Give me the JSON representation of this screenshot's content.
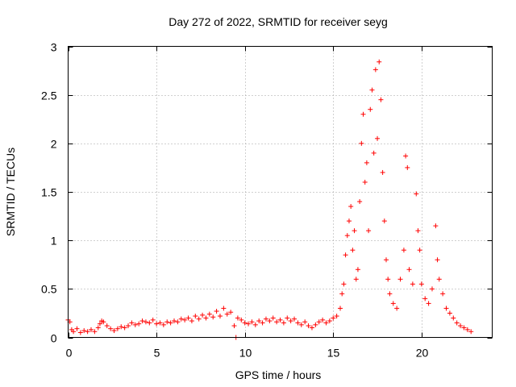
{
  "chart_data": {
    "type": "scatter",
    "title": "Day 272 of 2022, SRMTID for receiver seyg",
    "xlabel": "GPS time / hours",
    "ylabel": "SRMTID / TECUs",
    "xlim": [
      0,
      24
    ],
    "ylim": [
      0,
      3
    ],
    "xticks": [
      0,
      5,
      10,
      15,
      20
    ],
    "xtick_labels": [
      "0",
      "5",
      "10",
      "15",
      "20"
    ],
    "yticks": [
      0,
      0.5,
      1,
      1.5,
      2,
      2.5,
      3
    ],
    "ytick_labels": [
      "0",
      "0.5",
      "1",
      "1.5",
      "2",
      "2.5",
      "3"
    ],
    "grid": true,
    "marker": "+",
    "marker_color": "#ff0000",
    "series": [
      {
        "name": "SRMTID",
        "points": [
          [
            0.0,
            0.18
          ],
          [
            0.1,
            0.16
          ],
          [
            0.2,
            0.08
          ],
          [
            0.3,
            0.06
          ],
          [
            0.5,
            0.09
          ],
          [
            0.7,
            0.05
          ],
          [
            0.9,
            0.07
          ],
          [
            1.1,
            0.06
          ],
          [
            1.3,
            0.08
          ],
          [
            1.5,
            0.06
          ],
          [
            1.7,
            0.1
          ],
          [
            1.8,
            0.14
          ],
          [
            1.9,
            0.17
          ],
          [
            2.0,
            0.16
          ],
          [
            2.2,
            0.12
          ],
          [
            2.4,
            0.09
          ],
          [
            2.6,
            0.07
          ],
          [
            2.8,
            0.09
          ],
          [
            3.0,
            0.11
          ],
          [
            3.2,
            0.1
          ],
          [
            3.4,
            0.12
          ],
          [
            3.6,
            0.15
          ],
          [
            3.8,
            0.13
          ],
          [
            4.0,
            0.14
          ],
          [
            4.2,
            0.17
          ],
          [
            4.4,
            0.16
          ],
          [
            4.6,
            0.15
          ],
          [
            4.8,
            0.18
          ],
          [
            5.0,
            0.14
          ],
          [
            5.2,
            0.15
          ],
          [
            5.4,
            0.13
          ],
          [
            5.6,
            0.16
          ],
          [
            5.8,
            0.15
          ],
          [
            6.0,
            0.17
          ],
          [
            6.2,
            0.16
          ],
          [
            6.4,
            0.19
          ],
          [
            6.6,
            0.18
          ],
          [
            6.8,
            0.2
          ],
          [
            7.0,
            0.17
          ],
          [
            7.2,
            0.22
          ],
          [
            7.4,
            0.19
          ],
          [
            7.6,
            0.23
          ],
          [
            7.8,
            0.2
          ],
          [
            8.0,
            0.24
          ],
          [
            8.2,
            0.21
          ],
          [
            8.4,
            0.27
          ],
          [
            8.6,
            0.22
          ],
          [
            8.8,
            0.3
          ],
          [
            9.0,
            0.24
          ],
          [
            9.2,
            0.26
          ],
          [
            9.4,
            0.12
          ],
          [
            9.5,
            0.0
          ],
          [
            9.6,
            0.2
          ],
          [
            9.8,
            0.18
          ],
          [
            10.0,
            0.15
          ],
          [
            10.2,
            0.14
          ],
          [
            10.4,
            0.16
          ],
          [
            10.6,
            0.13
          ],
          [
            10.8,
            0.17
          ],
          [
            11.0,
            0.15
          ],
          [
            11.2,
            0.19
          ],
          [
            11.4,
            0.17
          ],
          [
            11.6,
            0.2
          ],
          [
            11.8,
            0.16
          ],
          [
            12.0,
            0.18
          ],
          [
            12.2,
            0.15
          ],
          [
            12.4,
            0.2
          ],
          [
            12.6,
            0.17
          ],
          [
            12.8,
            0.19
          ],
          [
            13.0,
            0.15
          ],
          [
            13.2,
            0.13
          ],
          [
            13.4,
            0.16
          ],
          [
            13.6,
            0.12
          ],
          [
            13.8,
            0.1
          ],
          [
            14.0,
            0.13
          ],
          [
            14.2,
            0.16
          ],
          [
            14.4,
            0.18
          ],
          [
            14.6,
            0.15
          ],
          [
            14.8,
            0.17
          ],
          [
            15.0,
            0.2
          ],
          [
            15.2,
            0.22
          ],
          [
            15.4,
            0.3
          ],
          [
            15.5,
            0.45
          ],
          [
            15.6,
            0.55
          ],
          [
            15.7,
            0.85
          ],
          [
            15.8,
            1.05
          ],
          [
            15.9,
            1.2
          ],
          [
            16.0,
            1.35
          ],
          [
            16.1,
            0.9
          ],
          [
            16.2,
            1.1
          ],
          [
            16.3,
            0.6
          ],
          [
            16.4,
            0.7
          ],
          [
            16.5,
            1.4
          ],
          [
            16.6,
            2.0
          ],
          [
            16.7,
            2.3
          ],
          [
            16.8,
            1.6
          ],
          [
            16.9,
            1.8
          ],
          [
            17.0,
            1.1
          ],
          [
            17.1,
            2.35
          ],
          [
            17.2,
            2.55
          ],
          [
            17.3,
            1.9
          ],
          [
            17.4,
            2.76
          ],
          [
            17.5,
            2.05
          ],
          [
            17.6,
            2.84
          ],
          [
            17.7,
            2.45
          ],
          [
            17.8,
            1.7
          ],
          [
            17.9,
            1.2
          ],
          [
            18.0,
            0.8
          ],
          [
            18.1,
            0.6
          ],
          [
            18.2,
            0.45
          ],
          [
            18.4,
            0.35
          ],
          [
            18.6,
            0.3
          ],
          [
            18.8,
            0.6
          ],
          [
            19.0,
            0.9
          ],
          [
            19.1,
            1.87
          ],
          [
            19.2,
            1.75
          ],
          [
            19.3,
            0.7
          ],
          [
            19.5,
            0.55
          ],
          [
            19.7,
            1.48
          ],
          [
            19.8,
            1.1
          ],
          [
            19.9,
            0.9
          ],
          [
            20.0,
            0.55
          ],
          [
            20.2,
            0.4
          ],
          [
            20.4,
            0.35
          ],
          [
            20.6,
            0.5
          ],
          [
            20.8,
            1.15
          ],
          [
            20.9,
            0.8
          ],
          [
            21.0,
            0.6
          ],
          [
            21.2,
            0.45
          ],
          [
            21.4,
            0.3
          ],
          [
            21.6,
            0.25
          ],
          [
            21.8,
            0.2
          ],
          [
            22.0,
            0.15
          ],
          [
            22.2,
            0.12
          ],
          [
            22.4,
            0.1
          ],
          [
            22.6,
            0.08
          ],
          [
            22.8,
            0.06
          ]
        ]
      }
    ]
  }
}
